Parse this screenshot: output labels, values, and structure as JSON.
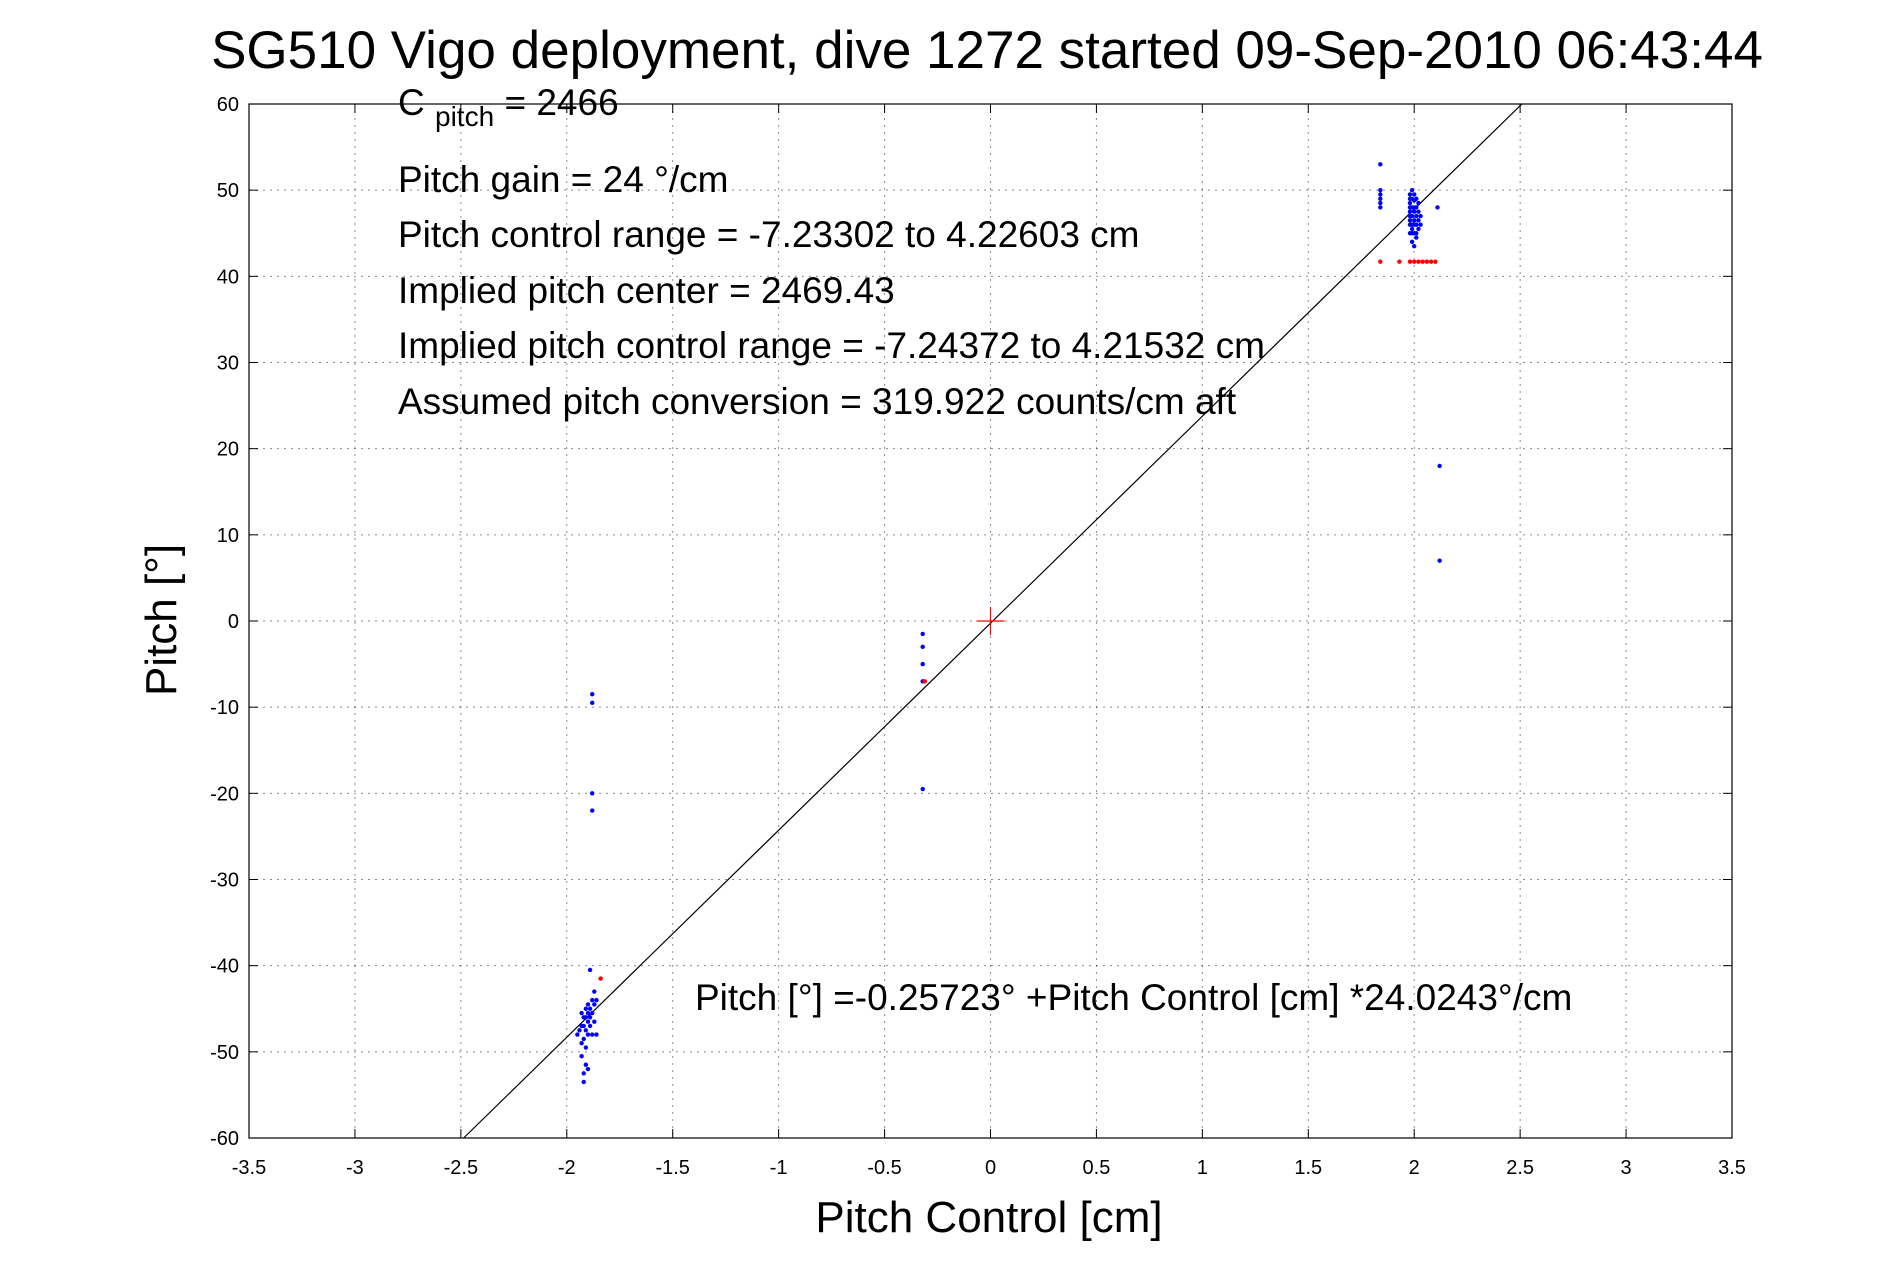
{
  "chart_data": {
    "type": "scatter",
    "title": "SG510 Vigo deployment, dive 1272 started 09-Sep-2010 06:43:44",
    "xlabel": "Pitch Control [cm]",
    "ylabel": "Pitch [°]",
    "xlim": [
      -3.5,
      3.5
    ],
    "ylim": [
      -60,
      60
    ],
    "xticks": [
      -3.5,
      -3,
      -2.5,
      -2,
      -1.5,
      -1,
      -0.5,
      0,
      0.5,
      1,
      1.5,
      2,
      2.5,
      3,
      3.5
    ],
    "yticks": [
      -60,
      -50,
      -40,
      -30,
      -20,
      -10,
      0,
      10,
      20,
      30,
      40,
      50,
      60
    ],
    "xtick_labels": [
      "-3.5",
      "-3",
      "-2.5",
      "-2",
      "-1.5",
      "-1",
      "-0.5",
      "0",
      "0.5",
      "1",
      "1.5",
      "2",
      "2.5",
      "3",
      "3.5"
    ],
    "ytick_labels": [
      "-60",
      "-50",
      "-40",
      "-30",
      "-20",
      "-10",
      "0",
      "10",
      "20",
      "30",
      "40",
      "50",
      "60"
    ],
    "grid": true,
    "fit_line": {
      "intercept": -0.25723,
      "slope": 24.0243,
      "color": "#000000"
    },
    "center_marker": {
      "x": 0,
      "y": 0,
      "color": "#ff0000"
    },
    "annotation": {
      "c_pitch_main": "C",
      "c_pitch_sub": "pitch",
      "c_pitch_value": " = 2466",
      "lines": [
        "Pitch gain = 24 °/cm",
        "Pitch control range = -7.23302 to 4.22603 cm",
        "Implied pitch center = 2469.43",
        "Implied pitch control range = -7.24372 to 4.21532 cm",
        "Assumed pitch conversion = 319.922 counts/cm aft"
      ],
      "fit_equation": "Pitch [°] =-0.25723° +Pitch Control [cm] *24.0243°/cm"
    },
    "series": [
      {
        "color": "#0000ff",
        "x": [
          1.84,
          1.84,
          1.84,
          1.84,
          1.84,
          1.84,
          1.98,
          1.98,
          1.98,
          1.98,
          1.98,
          1.98,
          1.98,
          1.98,
          1.98,
          1.99,
          1.99,
          1.99,
          1.99,
          1.99,
          1.99,
          1.99,
          1.99,
          2.0,
          2.0,
          2.0,
          2.0,
          2.0,
          2.0,
          2.0,
          2.0,
          2.01,
          2.01,
          2.01,
          2.01,
          2.01,
          2.01,
          2.02,
          2.02,
          2.02,
          2.02,
          2.03,
          2.03,
          2.11,
          2.12,
          2.12,
          -1.88,
          -1.88,
          -1.88,
          -1.88,
          -0.32,
          -0.32,
          -0.32,
          -0.32,
          -0.32,
          -1.95,
          -1.94,
          -1.93,
          -1.93,
          -1.93,
          -1.93,
          -1.92,
          -1.92,
          -1.92,
          -1.92,
          -1.92,
          -1.91,
          -1.91,
          -1.91,
          -1.91,
          -1.91,
          -1.9,
          -1.9,
          -1.9,
          -1.9,
          -1.89,
          -1.89,
          -1.89,
          -1.88,
          -1.88,
          -1.88,
          -1.87,
          -1.87,
          -1.87,
          -1.86,
          -1.86,
          -1.89,
          -1.9
        ],
        "y": [
          53.0,
          50.0,
          49.5,
          49.0,
          48.5,
          48.0,
          49.5,
          49.0,
          48.5,
          48.0,
          47.5,
          47.0,
          46.5,
          46.0,
          45.0,
          50.0,
          49.0,
          48.0,
          47.0,
          46.0,
          45.5,
          45.0,
          44.0,
          49.5,
          48.8,
          48.0,
          47.5,
          46.5,
          46.0,
          45.0,
          43.5,
          49.0,
          48.0,
          47.0,
          46.0,
          45.0,
          44.5,
          48.5,
          47.5,
          46.5,
          45.5,
          47.0,
          46.0,
          48.0,
          18.0,
          7.0,
          -8.5,
          -9.5,
          -20.0,
          -22.0,
          -1.5,
          -3.0,
          -5.0,
          -7.0,
          -19.5,
          -48.0,
          -47.5,
          -45.5,
          -47.0,
          -49.0,
          -50.5,
          -46.0,
          -47.0,
          -48.5,
          -52.5,
          -53.5,
          -45.0,
          -46.0,
          -47.5,
          -49.5,
          -51.5,
          -44.5,
          -45.5,
          -46.5,
          -48.0,
          -45.0,
          -46.0,
          -47.0,
          -44.0,
          -45.5,
          -48.0,
          -43.0,
          -44.5,
          -46.5,
          -44.0,
          -48.0,
          -40.5,
          -52.0
        ]
      },
      {
        "color": "#ff0000",
        "x": [
          1.84,
          1.93,
          1.98,
          2.0,
          2.02,
          2.04,
          2.06,
          2.08,
          2.1,
          -1.84,
          -0.31
        ],
        "y": [
          41.7,
          41.7,
          41.7,
          41.7,
          41.7,
          41.7,
          41.7,
          41.7,
          41.7,
          -41.5,
          -7.0
        ]
      }
    ]
  }
}
